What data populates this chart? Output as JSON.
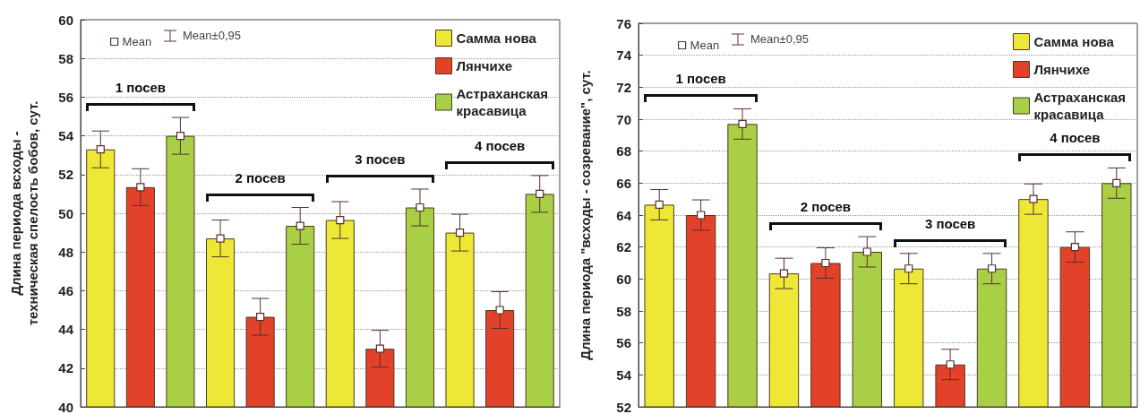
{
  "chart_data": [
    {
      "type": "bar",
      "ylabel": "Длина периода всходы -\nтехническая спелость бобов, сут.",
      "categories": [
        null,
        null,
        null,
        null,
        null,
        null,
        null,
        null,
        null,
        null,
        null,
        null
      ],
      "series": [
        {
          "name": "Самма нова",
          "color": "#ede835",
          "values": [
            53.3,
            null,
            null,
            48.7,
            null,
            null,
            49.65,
            null,
            null,
            49.0,
            null,
            null
          ]
        },
        {
          "name": "Лянчихе",
          "color": "#e2412a",
          "values": [
            null,
            51.35,
            null,
            null,
            44.65,
            null,
            null,
            43.0,
            null,
            null,
            45.0,
            null
          ]
        },
        {
          "name": "Астраханская красавица",
          "color": "#a8cf45",
          "values": [
            null,
            null,
            54.0,
            null,
            null,
            49.35,
            null,
            null,
            50.3,
            null,
            null,
            51.0
          ]
        },
        {
          "name": "Mean",
          "type": "scatter",
          "color": "#ffffff",
          "values": [
            53.3,
            51.35,
            54.0,
            48.7,
            44.65,
            49.35,
            49.65,
            43.0,
            50.3,
            49.0,
            45.0,
            51.0
          ],
          "errors": [
            0.95,
            0.95,
            0.95,
            0.95,
            0.95,
            0.95,
            0.95,
            0.95,
            0.95,
            0.95,
            0.95,
            0.95
          ]
        }
      ],
      "ylim": [
        40,
        60
      ],
      "yticks": [
        40,
        42,
        44,
        46,
        48,
        50,
        52,
        54,
        56,
        58,
        60
      ],
      "grid": "y",
      "legend": "top right",
      "marker": "square",
      "annotations": [
        "Mean±0,95",
        "1 посев",
        "2 посев",
        "3 посев",
        "4 посев"
      ]
    },
    {
      "type": "bar",
      "ylabel": "Длина периода \"всходы - созревание\", сут.",
      "categories": [
        null,
        null,
        null,
        null,
        null,
        null,
        null,
        null,
        null,
        null,
        null,
        null
      ],
      "series": [
        {
          "name": "Самма нова",
          "color": "#ede835",
          "values": [
            64.65,
            null,
            null,
            60.35,
            null,
            null,
            60.65,
            null,
            null,
            65.0,
            null,
            null
          ]
        },
        {
          "name": "Лянчихе",
          "color": "#e2412a",
          "values": [
            null,
            64.0,
            null,
            null,
            61.0,
            null,
            null,
            54.65,
            null,
            null,
            62.0,
            null
          ]
        },
        {
          "name": "Астраханская красавица",
          "color": "#a8cf45",
          "values": [
            null,
            null,
            69.7,
            null,
            null,
            61.7,
            null,
            null,
            60.65,
            null,
            null,
            66.0
          ]
        },
        {
          "name": "Mean",
          "type": "scatter",
          "color": "#ffffff",
          "values": [
            64.65,
            64.0,
            69.7,
            60.35,
            61.0,
            61.7,
            60.65,
            54.65,
            60.65,
            65.0,
            62.0,
            66.0
          ],
          "errors": [
            0.95,
            0.95,
            0.95,
            0.95,
            0.95,
            0.95,
            0.95,
            0.95,
            0.95,
            0.95,
            0.95,
            0.95
          ]
        }
      ],
      "ylim": [
        52,
        76
      ],
      "yticks": [
        52,
        54,
        56,
        58,
        60,
        62,
        64,
        66,
        68,
        70,
        72,
        74,
        76
      ],
      "grid": "y",
      "legend": "top right",
      "marker": "square",
      "annotations": [
        "Mean±0,95",
        "1 посев",
        "2 посев",
        "3 посев",
        "4 посев"
      ]
    }
  ]
}
